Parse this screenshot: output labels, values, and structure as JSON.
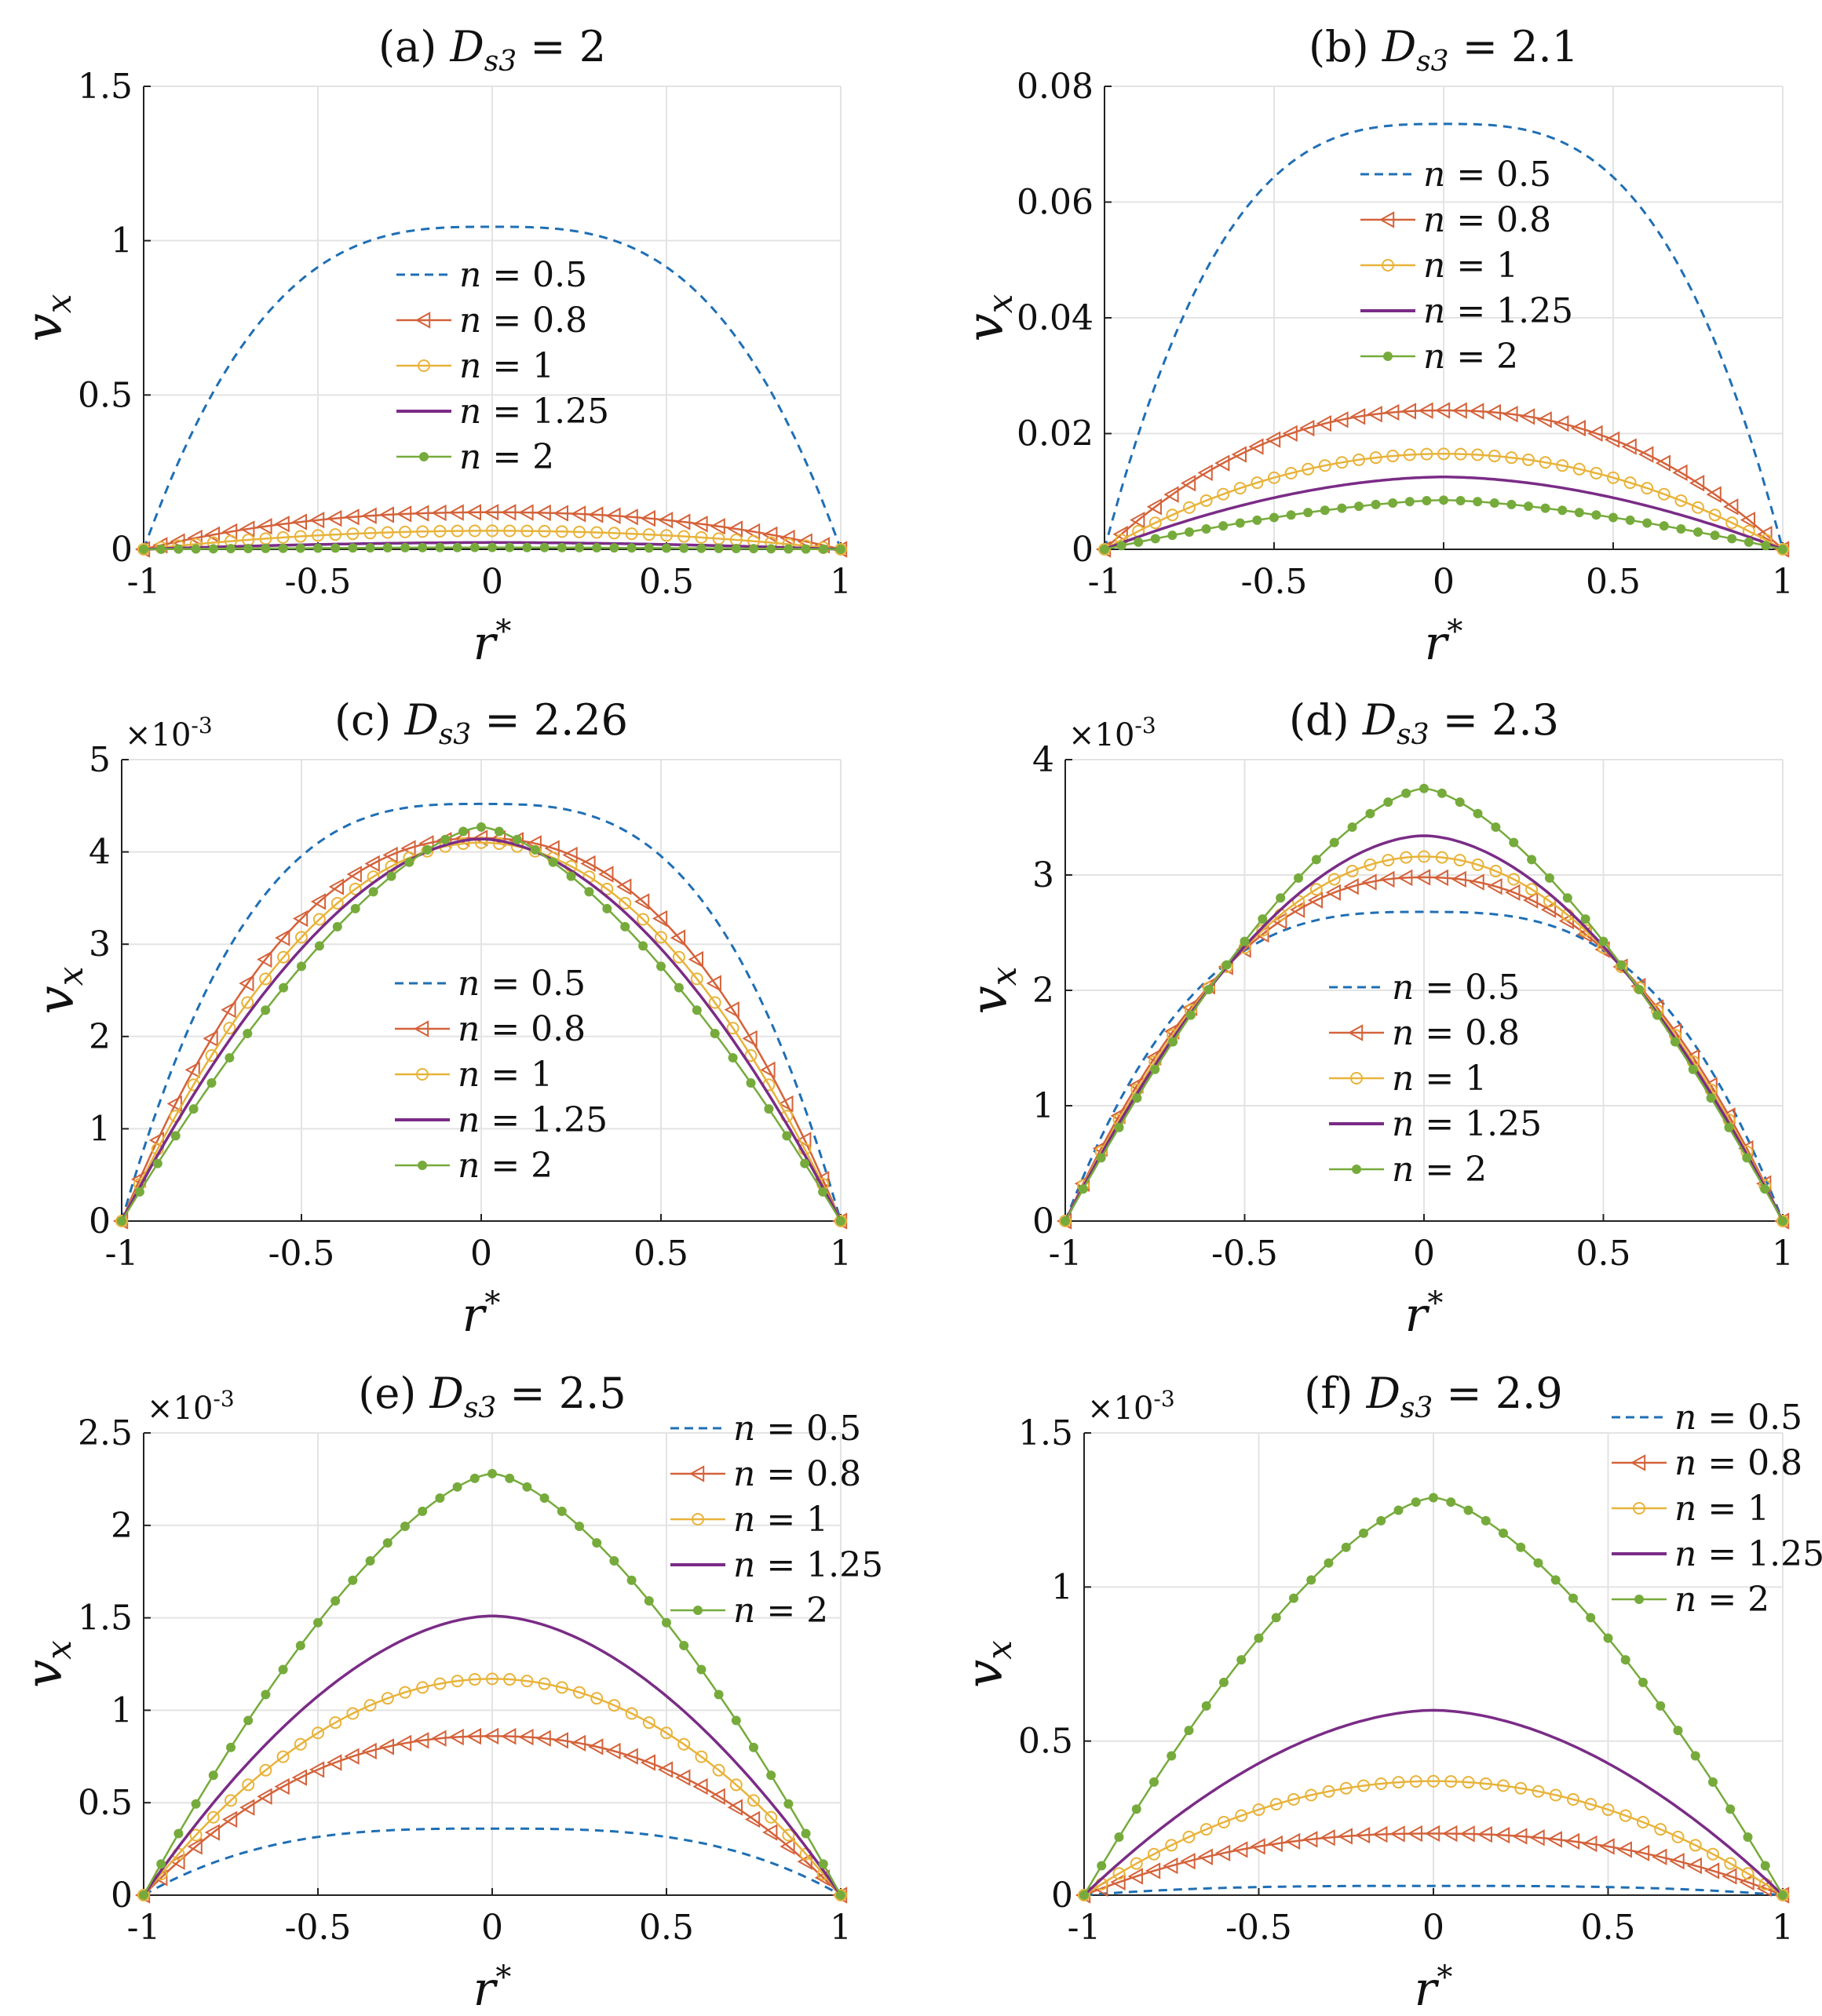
{
  "figure": {
    "colors": {
      "n05": "#1f6fb4",
      "n08": "#d4623a",
      "n1": "#e8b33a",
      "n125": "#7a2c86",
      "n2": "#76ab3c",
      "grid": "#e3e3e3",
      "axis": "#222222",
      "text": "#111111"
    }
  },
  "chart_data": [
    {
      "type": "line",
      "title": "(a) Ds3 = 2",
      "title_prefix": "(a)",
      "title_var": "D",
      "title_sub": "s3",
      "title_value": "= 2",
      "xlabel": "r*",
      "ylabel": "vx",
      "x_ticks": [
        "-1",
        "-0.5",
        "0",
        "0.5",
        "1"
      ],
      "y_ticks": [
        "0",
        "0.5",
        "1",
        "1.5"
      ],
      "y_tick_values": [
        0,
        0.5,
        1,
        1.5
      ],
      "xlim": [
        -1,
        1
      ],
      "ylim": [
        0,
        1.5
      ],
      "multiplier": "",
      "grid": true,
      "legend_position": "center",
      "series": [
        {
          "name": "n = 0.5",
          "n": 0.5,
          "peak": 1.045,
          "marker": "none",
          "dash": "dashed"
        },
        {
          "name": "n = 0.8",
          "n": 0.8,
          "peak": 0.12,
          "marker": "triangle-left",
          "dash": "solid"
        },
        {
          "name": "n = 1",
          "n": 1,
          "peak": 0.06,
          "marker": "circle",
          "dash": "solid"
        },
        {
          "name": "n = 1.25",
          "n": 1.25,
          "peak": 0.022,
          "marker": "none",
          "dash": "solid"
        },
        {
          "name": "n = 2",
          "n": 2,
          "peak": 0.006,
          "marker": "dot",
          "dash": "solid"
        }
      ]
    },
    {
      "type": "line",
      "title": "(b) Ds3 = 2.1",
      "title_prefix": "(b)",
      "title_var": "D",
      "title_sub": "s3",
      "title_value": "= 2.1",
      "xlabel": "r*",
      "ylabel": "vx",
      "x_ticks": [
        "-1",
        "-0.5",
        "0",
        "0.5",
        "1"
      ],
      "y_ticks": [
        "0",
        "0.02",
        "0.04",
        "0.06",
        "0.08"
      ],
      "y_tick_values": [
        0,
        0.02,
        0.04,
        0.06,
        0.08
      ],
      "xlim": [
        -1,
        1
      ],
      "ylim": [
        0,
        0.08
      ],
      "multiplier": "",
      "grid": true,
      "legend_position": "upper-center",
      "series": [
        {
          "name": "n = 0.5",
          "n": 0.5,
          "peak": 0.0735,
          "marker": "none",
          "dash": "dashed"
        },
        {
          "name": "n = 0.8",
          "n": 0.8,
          "peak": 0.024,
          "marker": "triangle-left",
          "dash": "solid"
        },
        {
          "name": "n = 1",
          "n": 1,
          "peak": 0.0165,
          "marker": "circle",
          "dash": "solid"
        },
        {
          "name": "n = 1.25",
          "n": 1.25,
          "peak": 0.0125,
          "marker": "none",
          "dash": "solid"
        },
        {
          "name": "n = 2",
          "n": 2,
          "peak": 0.0085,
          "marker": "dot",
          "dash": "solid"
        }
      ]
    },
    {
      "type": "line",
      "title": "(c) Ds3 = 2.26",
      "title_prefix": "(c)",
      "title_var": "D",
      "title_sub": "s3",
      "title_value": "= 2.26",
      "xlabel": "r*",
      "ylabel": "vx",
      "x_ticks": [
        "-1",
        "-0.5",
        "0",
        "0.5",
        "1"
      ],
      "y_ticks": [
        "0",
        "1",
        "2",
        "3",
        "4",
        "5"
      ],
      "y_tick_values": [
        0,
        1,
        2,
        3,
        4,
        5
      ],
      "xlim": [
        -1,
        1
      ],
      "ylim": [
        0,
        5
      ],
      "multiplier": "×10",
      "multiplier_exp": "-3",
      "grid": true,
      "legend_position": "lower-center",
      "series": [
        {
          "name": "n = 0.5",
          "n": 0.5,
          "peak": 4.52,
          "marker": "none",
          "dash": "dashed"
        },
        {
          "name": "n = 0.8",
          "n": 0.8,
          "peak": 4.15,
          "marker": "triangle-left",
          "dash": "solid"
        },
        {
          "name": "n = 1",
          "n": 1,
          "peak": 4.1,
          "marker": "circle",
          "dash": "solid"
        },
        {
          "name": "n = 1.25",
          "n": 1.25,
          "peak": 4.14,
          "marker": "none",
          "dash": "solid"
        },
        {
          "name": "n = 2",
          "n": 2,
          "peak": 4.27,
          "marker": "dot",
          "dash": "solid"
        }
      ]
    },
    {
      "type": "line",
      "title": "(d) Ds3 = 2.3",
      "title_prefix": "(d)",
      "title_var": "D",
      "title_sub": "s3",
      "title_value": "= 2.3",
      "xlabel": "r*",
      "ylabel": "vx",
      "x_ticks": [
        "-1",
        "-0.5",
        "0",
        "0.5",
        "1"
      ],
      "y_ticks": [
        "0",
        "1",
        "2",
        "3",
        "4"
      ],
      "y_tick_values": [
        0,
        1,
        2,
        3,
        4
      ],
      "xlim": [
        -1,
        1
      ],
      "ylim": [
        0,
        4
      ],
      "multiplier": "×10",
      "multiplier_exp": "-3",
      "grid": true,
      "legend_position": "lower-center",
      "series": [
        {
          "name": "n = 0.5",
          "n": 0.5,
          "peak": 2.68,
          "marker": "none",
          "dash": "dashed"
        },
        {
          "name": "n = 0.8",
          "n": 0.8,
          "peak": 2.98,
          "marker": "triangle-left",
          "dash": "solid"
        },
        {
          "name": "n = 1",
          "n": 1,
          "peak": 3.16,
          "marker": "circle",
          "dash": "solid"
        },
        {
          "name": "n = 1.25",
          "n": 1.25,
          "peak": 3.34,
          "marker": "none",
          "dash": "solid"
        },
        {
          "name": "n = 2",
          "n": 2,
          "peak": 3.75,
          "marker": "dot",
          "dash": "solid"
        }
      ]
    },
    {
      "type": "line",
      "title": "(e) Ds3 = 2.5",
      "title_prefix": "(e)",
      "title_var": "D",
      "title_sub": "s3",
      "title_value": "= 2.5",
      "xlabel": "r*",
      "ylabel": "vx",
      "x_ticks": [
        "-1",
        "-0.5",
        "0",
        "0.5",
        "1"
      ],
      "y_ticks": [
        "0",
        "0.5",
        "1",
        "1.5",
        "2",
        "2.5"
      ],
      "y_tick_values": [
        0,
        0.5,
        1,
        1.5,
        2,
        2.5
      ],
      "xlim": [
        -1,
        1
      ],
      "ylim": [
        0,
        2.5
      ],
      "multiplier": "×10",
      "multiplier_exp": "-3",
      "grid": true,
      "legend_position": "top-right",
      "series": [
        {
          "name": "n = 0.5",
          "n": 0.5,
          "peak": 0.36,
          "marker": "none",
          "dash": "dashed"
        },
        {
          "name": "n = 0.8",
          "n": 0.8,
          "peak": 0.86,
          "marker": "triangle-left",
          "dash": "solid"
        },
        {
          "name": "n = 1",
          "n": 1,
          "peak": 1.17,
          "marker": "circle",
          "dash": "solid"
        },
        {
          "name": "n = 1.25",
          "n": 1.25,
          "peak": 1.51,
          "marker": "none",
          "dash": "solid"
        },
        {
          "name": "n = 2",
          "n": 2,
          "peak": 2.28,
          "marker": "dot",
          "dash": "solid"
        }
      ]
    },
    {
      "type": "line",
      "title": "(f) Ds3 = 2.9",
      "title_prefix": "(f)",
      "title_var": "D",
      "title_sub": "s3",
      "title_value": "= 2.9",
      "xlabel": "r*",
      "ylabel": "vx",
      "x_ticks": [
        "-1",
        "-0.5",
        "0",
        "0.5",
        "1"
      ],
      "y_ticks": [
        "0",
        "0.5",
        "1",
        "1.5"
      ],
      "y_tick_values": [
        0,
        0.5,
        1,
        1.5
      ],
      "xlim": [
        -1,
        1
      ],
      "ylim": [
        0,
        1.5
      ],
      "multiplier": "×10",
      "multiplier_exp": "-3",
      "grid": true,
      "legend_position": "top-right",
      "series": [
        {
          "name": "n = 0.5",
          "n": 0.5,
          "peak": 0.03,
          "marker": "none",
          "dash": "dashed"
        },
        {
          "name": "n = 0.8",
          "n": 0.8,
          "peak": 0.2,
          "marker": "triangle-left",
          "dash": "solid"
        },
        {
          "name": "n = 1",
          "n": 1,
          "peak": 0.37,
          "marker": "circle",
          "dash": "solid"
        },
        {
          "name": "n = 1.25",
          "n": 1.25,
          "peak": 0.6,
          "marker": "none",
          "dash": "solid"
        },
        {
          "name": "n = 2",
          "n": 2,
          "peak": 1.29,
          "marker": "dot",
          "dash": "solid"
        }
      ]
    }
  ]
}
